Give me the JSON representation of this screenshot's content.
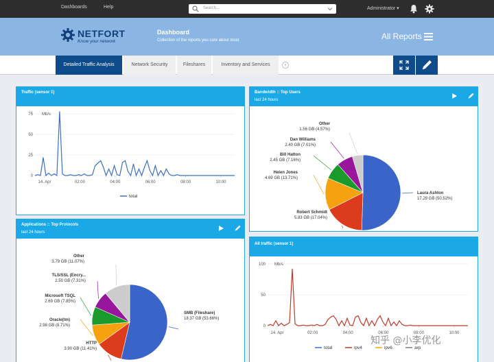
{
  "topbar": {
    "nav": [
      "Dashboards",
      "Help"
    ],
    "search_placeholder": "Search...",
    "user": "Administrator ▾"
  },
  "header": {
    "logo": "NETFORT",
    "tagline": "Know your network",
    "title": "Dashboard",
    "subtitle": "Collection of the reports you care about most",
    "all_reports": "All Reports"
  },
  "tabs": [
    {
      "label": "Detailed Traffic Analysis",
      "active": true
    },
    {
      "label": "Network Security"
    },
    {
      "label": "Fileshares"
    },
    {
      "label": "Inventory and Services"
    }
  ],
  "colors": {
    "accent": "#1ba8e6",
    "nav": "#0d4b8a",
    "header": "#8bb6e4",
    "line": "#3a6fc4",
    "line2": "#c0392b"
  },
  "panels": {
    "traffic": {
      "title": "Traffic (sensor 1)"
    },
    "top_users": {
      "title": "Bandwidth :: Top Users",
      "subtitle": "last 24 hours"
    },
    "protocols": {
      "title": "Applications :: Top Protocols",
      "subtitle": "last 24 hours"
    },
    "all_traffic": {
      "title": "All traffic (sensor 1)"
    }
  },
  "chart_data": [
    {
      "id": "traffic-sensor1",
      "type": "line",
      "ylabel_unit": "Mb/s",
      "ylim": [
        0,
        75
      ],
      "yticks": [
        "75",
        "50",
        "25",
        "0"
      ],
      "xticks": [
        "14. Apr",
        "02:00",
        "04:00",
        "06:00",
        "08:00",
        "10:00"
      ],
      "legend": [
        "total"
      ],
      "series": [
        {
          "name": "total",
          "values": [
            0,
            1,
            0,
            22,
            0,
            3,
            0,
            2,
            0,
            78,
            2,
            0,
            0,
            1,
            0,
            0,
            1,
            0,
            2,
            0,
            0,
            1,
            12,
            15,
            18,
            10,
            0,
            8,
            0,
            12,
            1,
            0,
            16,
            18,
            5,
            0,
            14,
            0,
            8,
            0,
            10,
            18,
            6,
            0,
            12,
            0,
            6,
            0,
            8,
            2,
            0,
            0,
            1,
            0,
            0,
            0,
            0,
            0,
            0,
            0,
            0,
            0,
            0,
            0,
            0,
            0,
            0,
            0,
            0,
            0,
            0,
            0,
            0,
            0
          ]
        }
      ]
    },
    {
      "id": "top-users",
      "type": "pie",
      "slices": [
        {
          "label": "Laura Ashton",
          "value_text": "17.29 GB (50.52%)",
          "percent": 50.52,
          "color": "#3b64c8"
        },
        {
          "label": "Robert Schmidt",
          "value_text": "5.83 GB (17.04%)",
          "percent": 17.04,
          "color": "#dc3b1e"
        },
        {
          "label": "Helen Jones",
          "value_text": "4.69 GB (13.71%)",
          "percent": 13.71,
          "color": "#f5a20e"
        },
        {
          "label": "Bill Hatton",
          "value_text": "2.45 GB (7.16%)",
          "percent": 7.16,
          "color": "#1a9a2b"
        },
        {
          "label": "Dan Williams",
          "value_text": "2.40 GB (7.01%)",
          "percent": 7.01,
          "color": "#97169b"
        },
        {
          "label": "Other",
          "value_text": "1.56 GB (4.57%)",
          "percent": 4.57,
          "color": "#cccccc"
        }
      ]
    },
    {
      "id": "top-protocols",
      "type": "pie",
      "slices": [
        {
          "label": "SMB (Fileshare)",
          "value_text": "18.37 GB (53.66%)",
          "percent": 53.66,
          "color": "#3b64c8"
        },
        {
          "label": "HTTP",
          "value_text": "3.90 GB (11.41%)",
          "percent": 11.41,
          "color": "#dc3b1e"
        },
        {
          "label": "Oracle(tm)",
          "value_text": "2.98 GB (8.71%)",
          "percent": 8.71,
          "color": "#f5a20e"
        },
        {
          "label": "Microsoft TSQL",
          "value_text": "2.69 GB (7.85%)",
          "percent": 7.85,
          "color": "#1a9a2b"
        },
        {
          "label": "TLS/SSL (Encry...",
          "value_text": "2.50 GB (7.31%)",
          "percent": 7.31,
          "color": "#97169b"
        },
        {
          "label": "Other",
          "value_text": "3.79 GB (11.07%)",
          "percent": 11.07,
          "color": "#cccccc"
        }
      ]
    },
    {
      "id": "all-traffic",
      "type": "line",
      "ylabel_unit": "Mb/s",
      "ylim": [
        0,
        100
      ],
      "yticks": [
        "100",
        "50",
        "0"
      ],
      "xticks": [
        "14. Apr",
        "02:00",
        "04:00",
        "06:00",
        "08:00",
        "10:00"
      ],
      "legend": [
        "total",
        "ipv4",
        "ipv6",
        "arp"
      ],
      "series": [
        {
          "name": "total",
          "values": [
            0,
            2,
            0,
            8,
            0,
            4,
            0,
            2,
            5,
            92,
            3,
            0,
            0,
            1,
            0,
            0,
            1,
            0,
            2,
            0,
            0,
            2,
            10,
            14,
            16,
            10,
            0,
            8,
            0,
            12,
            1,
            0,
            14,
            16,
            5,
            0,
            12,
            0,
            8,
            0,
            10,
            16,
            6,
            0,
            12,
            0,
            6,
            0,
            8,
            2,
            0,
            0,
            1,
            0,
            0,
            0,
            0,
            0,
            0,
            0,
            0,
            0,
            0,
            0,
            0,
            0,
            0,
            0,
            0,
            0,
            0,
            0,
            0,
            0
          ]
        }
      ]
    }
  ],
  "watermark": "知乎 @小李优化"
}
